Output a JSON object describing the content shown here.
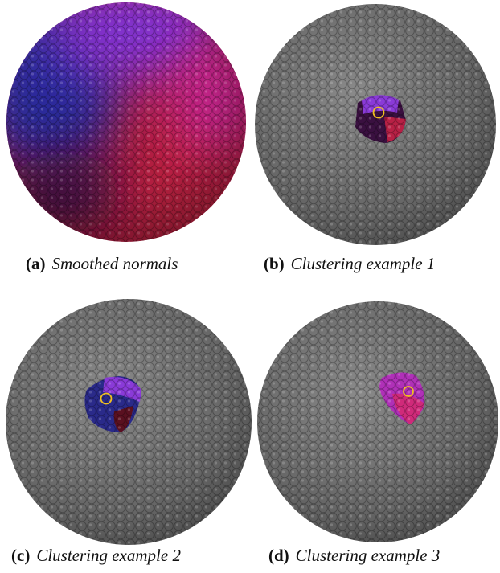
{
  "figures": [
    {
      "label": "(a)",
      "caption": "Smoothed normals"
    },
    {
      "label": "(b)",
      "caption": "Clustering example 1"
    },
    {
      "label": "(c)",
      "caption": "Clustering example 2"
    },
    {
      "label": "(d)",
      "caption": "Clustering example 3"
    }
  ]
}
